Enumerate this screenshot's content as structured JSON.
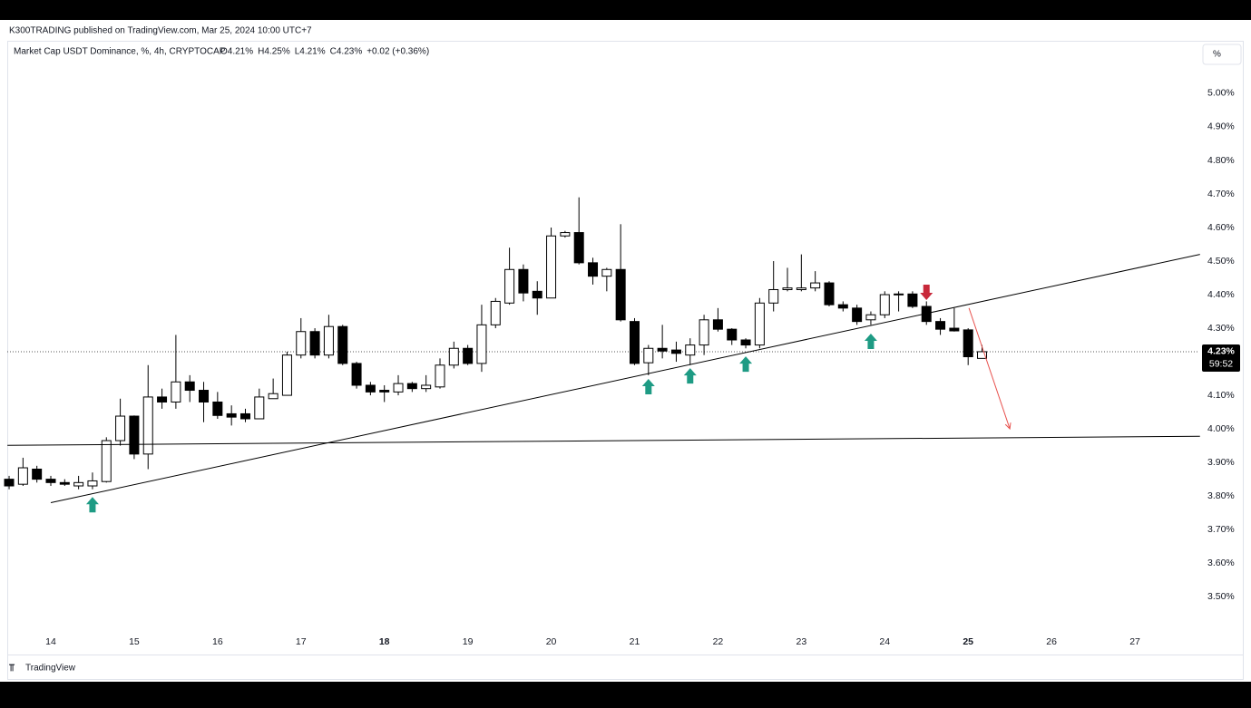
{
  "chart_data": {
    "type": "candlestick",
    "header": "K300TRADING published on TradingView.com, Mar 25, 2024 10:00 UTC+7",
    "symbol": "Market Cap USDT Dominance, %, 4h, CRYPTOCAP",
    "ohlc_legend": [
      "O4.21%",
      "H4.25%",
      "L4.21%",
      "C4.23%",
      "+0.02 (+0.36%)"
    ],
    "scale_button": "%",
    "brand": "TradingView",
    "x": [
      13.5,
      13.6667,
      13.8333,
      14,
      14.1667,
      14.3333,
      14.5,
      14.6667,
      14.8333,
      15,
      15.1667,
      15.3333,
      15.5,
      15.6667,
      15.8333,
      16,
      16.1667,
      16.3333,
      16.5,
      16.6667,
      16.8333,
      17,
      17.1667,
      17.3333,
      17.5,
      17.6667,
      17.8333,
      18,
      18.1667,
      18.3333,
      18.5,
      18.6667,
      18.8333,
      19,
      19.1667,
      19.3333,
      19.5,
      19.6667,
      19.8333,
      20,
      20.1667,
      20.3333,
      20.5,
      20.6667,
      20.8333,
      21,
      21.1667,
      21.3333,
      21.5,
      21.6667,
      21.8333,
      22,
      22.1667,
      22.3333,
      22.5,
      22.6667,
      22.8333,
      23,
      23.1667,
      23.3333,
      23.5,
      23.6667,
      23.8333,
      24,
      24.1667,
      24.3333,
      24.5,
      24.6667,
      24.8333,
      25,
      25.1667
    ],
    "open": [
      3.85,
      3.835,
      3.88,
      3.85,
      3.84,
      3.83,
      3.83,
      3.843,
      3.965,
      4.038,
      3.925,
      4.095,
      4.08,
      4.14,
      4.115,
      4.08,
      4.045,
      4.045,
      4.03,
      4.09,
      4.1,
      4.22,
      4.29,
      4.22,
      4.305,
      4.195,
      4.13,
      4.115,
      4.11,
      4.135,
      4.12,
      4.125,
      4.19,
      4.24,
      4.195,
      4.31,
      4.375,
      4.475,
      4.41,
      4.39,
      4.575,
      4.585,
      4.495,
      4.455,
      4.475,
      4.32,
      4.197,
      4.24,
      4.235,
      4.22,
      4.25,
      4.325,
      4.297,
      4.265,
      4.25,
      4.375,
      4.415,
      4.415,
      4.42,
      4.435,
      4.37,
      4.36,
      4.325,
      4.34,
      4.4,
      4.402,
      4.365,
      4.32,
      4.3,
      4.295,
      4.21
    ],
    "high": [
      3.86,
      3.914,
      3.89,
      3.86,
      3.85,
      3.86,
      3.87,
      3.975,
      4.09,
      4.04,
      4.19,
      4.12,
      4.28,
      4.16,
      4.14,
      4.11,
      4.07,
      4.06,
      4.12,
      4.15,
      4.23,
      4.33,
      4.3,
      4.34,
      4.31,
      4.2,
      4.14,
      4.13,
      4.16,
      4.14,
      4.16,
      4.21,
      4.26,
      4.25,
      4.37,
      4.39,
      4.54,
      4.49,
      4.44,
      4.6,
      4.59,
      4.69,
      4.51,
      4.48,
      4.61,
      4.33,
      4.25,
      4.31,
      4.26,
      4.27,
      4.34,
      4.36,
      4.3,
      4.27,
      4.39,
      4.5,
      4.48,
      4.52,
      4.47,
      4.44,
      4.38,
      4.37,
      4.35,
      4.41,
      4.41,
      4.41,
      4.38,
      4.33,
      4.36,
      4.3,
      4.25
    ],
    "low": [
      3.82,
      3.83,
      3.84,
      3.83,
      3.83,
      3.82,
      3.82,
      3.84,
      3.95,
      3.91,
      3.88,
      4.06,
      4.06,
      4.08,
      4.02,
      4.03,
      4.01,
      4.02,
      4.03,
      4.09,
      4.1,
      4.21,
      4.21,
      4.21,
      4.19,
      4.12,
      4.1,
      4.08,
      4.1,
      4.11,
      4.11,
      4.12,
      4.18,
      4.19,
      4.17,
      4.3,
      4.37,
      4.38,
      4.34,
      4.39,
      4.57,
      4.49,
      4.43,
      4.41,
      4.32,
      4.19,
      4.16,
      4.21,
      4.2,
      4.19,
      4.22,
      4.29,
      4.25,
      4.24,
      4.24,
      4.35,
      4.41,
      4.41,
      4.41,
      4.365,
      4.35,
      4.31,
      4.31,
      4.33,
      4.35,
      4.36,
      4.31,
      4.28,
      4.29,
      4.19,
      4.21
    ],
    "close": [
      3.83,
      3.884,
      3.85,
      3.84,
      3.835,
      3.84,
      3.845,
      3.965,
      4.038,
      3.925,
      4.095,
      4.08,
      4.14,
      4.115,
      4.08,
      4.04,
      4.035,
      4.03,
      4.095,
      4.105,
      4.22,
      4.29,
      4.22,
      4.305,
      4.195,
      4.13,
      4.11,
      4.11,
      4.135,
      4.12,
      4.13,
      4.19,
      4.24,
      4.195,
      4.31,
      4.38,
      4.475,
      4.405,
      4.39,
      4.575,
      4.585,
      4.495,
      4.455,
      4.475,
      4.325,
      4.195,
      4.24,
      4.232,
      4.225,
      4.25,
      4.325,
      4.297,
      4.265,
      4.25,
      4.375,
      4.415,
      4.42,
      4.42,
      4.435,
      4.37,
      4.36,
      4.32,
      4.34,
      4.4,
      4.402,
      4.365,
      4.32,
      4.297,
      4.292,
      4.215,
      4.23
    ],
    "up_color": "#ffffff",
    "down_color": "#000000",
    "wick_color": "#000000",
    "xlim": [
      13.478,
      27.75
    ],
    "xticks": [
      14,
      15,
      16,
      17,
      18,
      19,
      20,
      21,
      22,
      23,
      24,
      25,
      26,
      27
    ],
    "bold_xticks": [
      18,
      25
    ],
    "ylim": [
      3.414,
      5.089
    ],
    "yticks": [
      {
        "value": 5.0,
        "label": "5.00%"
      },
      {
        "value": 4.9,
        "label": "4.90%"
      },
      {
        "value": 4.8,
        "label": "4.80%"
      },
      {
        "value": 4.7,
        "label": "4.70%"
      },
      {
        "value": 4.6,
        "label": "4.60%"
      },
      {
        "value": 4.5,
        "label": "4.50%"
      },
      {
        "value": 4.4,
        "label": "4.40%"
      },
      {
        "value": 4.3,
        "label": "4.30%"
      },
      {
        "value": 4.1,
        "label": "4.10%"
      },
      {
        "value": 4.0,
        "label": "4.00%"
      },
      {
        "value": 3.9,
        "label": "3.90%"
      },
      {
        "value": 3.8,
        "label": "3.80%"
      },
      {
        "value": 3.7,
        "label": "3.70%"
      },
      {
        "value": 3.6,
        "label": "3.60%"
      },
      {
        "value": 3.5,
        "label": "3.50%"
      }
    ],
    "grid": false,
    "price_label": {
      "value": 4.23,
      "label": "4.23%",
      "countdown": "59:52"
    },
    "lines": [
      {
        "x": [
          14,
          27.78
        ],
        "y": [
          3.78,
          4.52
        ],
        "color": "#000000"
      },
      {
        "x": [
          13.48,
          27.78
        ],
        "y": [
          3.951,
          3.978
        ],
        "color": "#000000"
      }
    ],
    "arrows": [
      {
        "x": [
          25.01,
          25.5
        ],
        "y": [
          4.36,
          4.0
        ],
        "color": "#e8534f"
      }
    ],
    "signals": [
      {
        "x": 14.5,
        "y": 3.797,
        "direction": "up",
        "color": "#1e9b84"
      },
      {
        "x": 21.1667,
        "y": 4.149,
        "direction": "up",
        "color": "#1e9b84"
      },
      {
        "x": 21.6667,
        "y": 4.181,
        "direction": "up",
        "color": "#1e9b84"
      },
      {
        "x": 22.3333,
        "y": 4.216,
        "direction": "up",
        "color": "#1e9b84"
      },
      {
        "x": 23.8333,
        "y": 4.284,
        "direction": "up",
        "color": "#1e9b84"
      },
      {
        "x": 24.5,
        "y": 4.384,
        "direction": "down",
        "color": "#c8283a"
      }
    ]
  }
}
